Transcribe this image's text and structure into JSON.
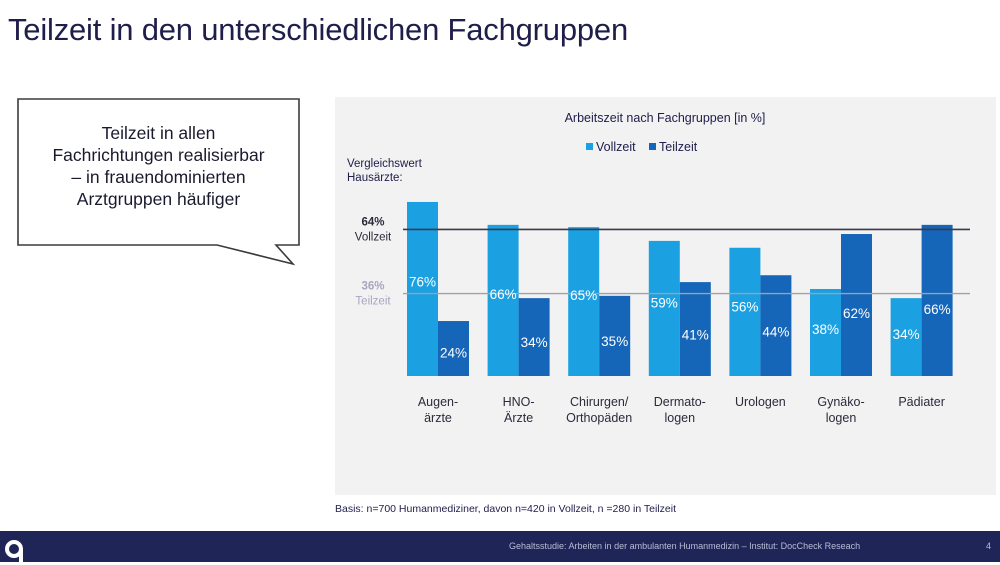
{
  "slide": {
    "title": "Teilzeit in den unterschiedlichen Fachgruppen"
  },
  "callout": {
    "lines": [
      "Teilzeit in allen",
      "Fachrichtungen realisierbar",
      "– in frauendominierten",
      "Arztgruppen häufiger"
    ]
  },
  "chart_data": {
    "type": "bar",
    "title": "Arbeitszeit nach Fachgruppen [in %]",
    "xlabel": "",
    "ylabel": "",
    "ylim": [
      0,
      100
    ],
    "grid": false,
    "legend": "top-center",
    "categories": [
      [
        "Augen-",
        "ärzte"
      ],
      [
        "HNO-",
        "Ärzte"
      ],
      [
        "Chirurgen/",
        "Orthopäden"
      ],
      [
        "Dermato-",
        "logen"
      ],
      [
        "Urologen"
      ],
      [
        "Gynäko-",
        "logen"
      ],
      [
        "Pädiater"
      ]
    ],
    "series": [
      {
        "name": "Vollzeit",
        "color": "#1ba1e2",
        "values": [
          76,
          66,
          65,
          59,
          56,
          38,
          34
        ]
      },
      {
        "name": "Teilzeit",
        "color": "#1565b8",
        "values": [
          24,
          34,
          35,
          41,
          44,
          62,
          66
        ]
      }
    ],
    "reference_heading": [
      "Vergleichswert",
      "Hausärzte:"
    ],
    "reference_lines": [
      {
        "value": 64,
        "label": [
          "64%",
          "Vollzeit"
        ],
        "color": "#3a3a4a",
        "text_color": "#2a2a3a"
      },
      {
        "value": 36,
        "label": [
          "36%",
          "Teilzeit"
        ],
        "color": "#a0a0a8",
        "text_color": "#a9a5c2"
      }
    ],
    "value_suffix": "%"
  },
  "basis_note": "Basis: n=700 Humanmediziner, davon n=420 in Vollzeit, n =280 in Teilzeit",
  "footer": {
    "logo_icon": "brand-logo-icon",
    "text": "Gehaltsstudie: Arbeiten in der ambulanten Humanmedizin – Institut: DocCheck Reseach",
    "page_number": "4"
  }
}
